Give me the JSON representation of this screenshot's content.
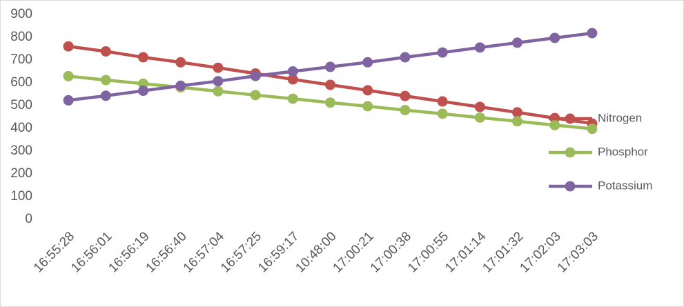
{
  "chart_data": {
    "type": "line",
    "categories": [
      "16:55:28",
      "16:56:01",
      "16:56:19",
      "16:56:40",
      "16:57:04",
      "16:57:25",
      "16:59:17",
      "10:48:00",
      "17:00:21",
      "17:00:38",
      "17:00:55",
      "17:01:14",
      "17:01:32",
      "17:02:03",
      "17:03:03"
    ],
    "series": [
      {
        "name": "Nitrogen",
        "color": "#c0504d",
        "values": [
          760,
          738,
          712,
          690,
          666,
          641,
          615,
          591,
          567,
          542,
          518,
          494,
          470,
          445,
          421
        ]
      },
      {
        "name": "Phosphor",
        "color": "#9bbb59",
        "values": [
          629,
          612,
          596,
          580,
          563,
          546,
          530,
          513,
          497,
          480,
          464,
          447,
          431,
          414,
          398
        ]
      },
      {
        "name": "Potassium",
        "color": "#8064a2",
        "values": [
          523,
          543,
          565,
          587,
          607,
          630,
          650,
          670,
          690,
          712,
          733,
          755,
          776,
          797,
          818
        ]
      }
    ],
    "ylim": [
      0,
      900
    ],
    "yticks": [
      0,
      100,
      200,
      300,
      400,
      500,
      600,
      700,
      800,
      900
    ],
    "grid": false,
    "legend": "right"
  }
}
